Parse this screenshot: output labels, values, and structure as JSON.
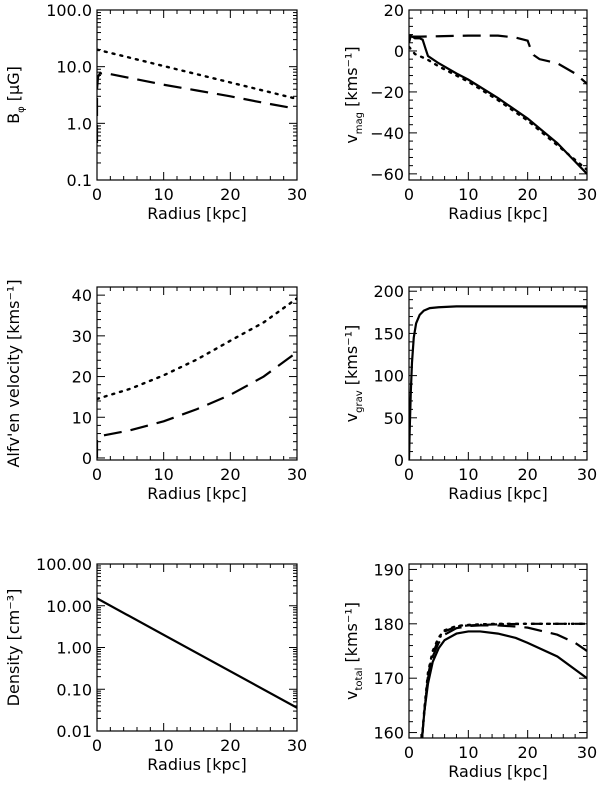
{
  "chart_data": [
    {
      "id": "bphi",
      "type": "line",
      "yscale": "log",
      "xlabel": "Radius [kpc]",
      "ylabel": {
        "main": "B",
        "sub": "φ",
        "tail": " [μG]"
      },
      "xlim": [
        0,
        30
      ],
      "ylim": [
        0.1,
        100
      ],
      "xticks": [
        0,
        10,
        20,
        30
      ],
      "xticklabels": [
        "0",
        "10",
        "20",
        "30"
      ],
      "yticks": [
        0.1,
        1,
        10,
        100
      ],
      "yticklabels": [
        "0.1",
        "1.0",
        "10.0",
        "100.0"
      ],
      "series": [
        {
          "name": "dotted",
          "style": "dot",
          "x": [
            0,
            30
          ],
          "y": [
            20,
            2.7
          ]
        },
        {
          "name": "dashed",
          "style": "dash",
          "x": [
            0,
            0,
            0.15,
            0.4,
            1,
            5,
            10,
            15,
            20,
            25,
            30
          ],
          "y": [
            0.45,
            4,
            6.5,
            7.5,
            7.8,
            6.3,
            4.8,
            3.8,
            3,
            2.3,
            1.8
          ]
        }
      ]
    },
    {
      "id": "vmag",
      "type": "line",
      "yscale": "linear",
      "xlabel": "Radius [kpc]",
      "ylabel": {
        "main": "v",
        "sub": "mag",
        "tail": " [kms⁻¹]"
      },
      "xlim": [
        0,
        30
      ],
      "ylim": [
        -63,
        20
      ],
      "xticks": [
        0,
        10,
        20,
        30
      ],
      "xticklabels": [
        "0",
        "10",
        "20",
        "30"
      ],
      "yticks": [
        -60,
        -40,
        -20,
        0,
        20
      ],
      "yticklabels": [
        "−60",
        "−40",
        "−20",
        "0",
        "20"
      ],
      "series": [
        {
          "name": "solid",
          "style": "solid",
          "x": [
            0,
            0.3,
            1,
            1.8,
            2.3,
            2.8,
            3.2,
            5,
            8,
            10,
            15,
            20,
            25,
            30
          ],
          "y": [
            4,
            7.5,
            6.2,
            6.2,
            5.5,
            1,
            -2.5,
            -6,
            -11,
            -14,
            -23,
            -33,
            -45,
            -60
          ]
        },
        {
          "name": "dashed",
          "style": "dash",
          "x": [
            0,
            0.3,
            2,
            5,
            10,
            15,
            18,
            20,
            20.5,
            21,
            22,
            25,
            28,
            30
          ],
          "y": [
            7.5,
            7,
            7,
            7.2,
            7.5,
            7.5,
            6.5,
            5,
            1,
            -2,
            -4,
            -6,
            -11,
            -16
          ]
        },
        {
          "name": "dotted",
          "style": "dot",
          "x": [
            0,
            1,
            3,
            5,
            8,
            10,
            15,
            20,
            25,
            30
          ],
          "y": [
            2,
            -1.5,
            -4,
            -7.5,
            -12,
            -15,
            -24,
            -34,
            -46,
            -58
          ]
        }
      ]
    },
    {
      "id": "alfven",
      "type": "line",
      "yscale": "linear",
      "xlabel": "Radius [kpc]",
      "ylabel": {
        "main": "Alfv'en velocity [kms⁻¹]",
        "sub": "",
        "tail": ""
      },
      "xlim": [
        0,
        30
      ],
      "ylim": [
        -0.5,
        42
      ],
      "xticks": [
        0,
        10,
        20,
        30
      ],
      "xticklabels": [
        "0",
        "10",
        "20",
        "30"
      ],
      "yticks": [
        0,
        10,
        20,
        30,
        40
      ],
      "yticklabels": [
        "0",
        "10",
        "20",
        "30",
        "40"
      ],
      "series": [
        {
          "name": "dotted",
          "style": "dot",
          "x": [
            0,
            5,
            10,
            15,
            20,
            25,
            30
          ],
          "y": [
            14.5,
            17,
            20.3,
            24.2,
            28.8,
            33.3,
            39.2
          ]
        },
        {
          "name": "dashed",
          "style": "dash",
          "x": [
            0,
            0,
            0.3,
            0.8,
            5,
            10,
            15,
            20,
            25,
            30
          ],
          "y": [
            0,
            4.5,
            5.2,
            5.5,
            6.8,
            9,
            12,
            15.5,
            20,
            26
          ]
        }
      ]
    },
    {
      "id": "vgrav",
      "type": "line",
      "yscale": "linear",
      "xlabel": "Radius [kpc]",
      "ylabel": {
        "main": "v",
        "sub": "grav",
        "tail": " [kms⁻¹]"
      },
      "xlim": [
        0,
        30
      ],
      "ylim": [
        0,
        205
      ],
      "xticks": [
        0,
        10,
        20,
        30
      ],
      "xticklabels": [
        "0",
        "10",
        "20",
        "30"
      ],
      "yticks": [
        0,
        50,
        100,
        150,
        200
      ],
      "yticklabels": [
        "0",
        "50",
        "100",
        "150",
        "200"
      ],
      "series": [
        {
          "name": "solid",
          "style": "solid",
          "x": [
            0,
            0.1,
            0.3,
            0.5,
            0.8,
            1.2,
            1.8,
            2.5,
            3.5,
            5,
            8,
            30
          ],
          "y": [
            0,
            30,
            80,
            115,
            145,
            162,
            172,
            177,
            180,
            181,
            182,
            182
          ]
        }
      ]
    },
    {
      "id": "density",
      "type": "line",
      "yscale": "log",
      "xlabel": "Radius [kpc]",
      "ylabel": {
        "main": "Density [cm⁻³]",
        "sub": "",
        "tail": ""
      },
      "xlim": [
        0,
        30
      ],
      "ylim": [
        0.01,
        100
      ],
      "xticks": [
        0,
        10,
        20,
        30
      ],
      "xticklabels": [
        "0",
        "10",
        "20",
        "30"
      ],
      "yticks": [
        0.01,
        0.1,
        1,
        10,
        100
      ],
      "yticklabels": [
        "0.01",
        "0.10",
        "1.00",
        "10.00",
        "100.00"
      ],
      "series": [
        {
          "name": "solid",
          "style": "solid",
          "x": [
            0,
            30
          ],
          "y": [
            15,
            0.036
          ]
        }
      ]
    },
    {
      "id": "vtotal",
      "type": "line",
      "yscale": "linear",
      "xlabel": "Radius [kpc]",
      "ylabel": {
        "main": "v",
        "sub": "total",
        "tail": " [kms⁻¹]"
      },
      "xlim": [
        0,
        30
      ],
      "ylim": [
        159,
        191
      ],
      "xticks": [
        0,
        10,
        20,
        30
      ],
      "xticklabels": [
        "0",
        "10",
        "20",
        "30"
      ],
      "yticks": [
        160,
        170,
        180,
        190
      ],
      "yticklabels": [
        "160",
        "170",
        "180",
        "190"
      ],
      "series": [
        {
          "name": "solid",
          "style": "solid",
          "x": [
            2.2,
            2.6,
            3.2,
            4,
            5,
            6,
            8,
            10,
            12,
            15,
            18,
            20,
            25,
            30
          ],
          "y": [
            159,
            164,
            169,
            173,
            175.5,
            177,
            178.2,
            178.6,
            178.6,
            178.2,
            177.4,
            176.5,
            174,
            170
          ]
        },
        {
          "name": "dashed",
          "style": "dash",
          "x": [
            2.2,
            2.6,
            3.2,
            4,
            5,
            6,
            8,
            10,
            12,
            15,
            18,
            20,
            25,
            28,
            30
          ],
          "y": [
            159,
            164,
            170,
            174,
            176.5,
            178,
            179.2,
            179.6,
            179.7,
            179.7,
            179.5,
            179.3,
            178,
            176.5,
            175
          ]
        },
        {
          "name": "dotted",
          "style": "dot",
          "x": [
            2.2,
            2.6,
            3.2,
            4,
            5,
            6,
            8,
            10,
            12,
            15,
            20,
            25,
            30
          ],
          "y": [
            159,
            164.5,
            171,
            175,
            177.5,
            178.8,
            179.6,
            179.8,
            179.9,
            180,
            180,
            180,
            180
          ]
        },
        {
          "name": "dashdot",
          "style": "dashdot",
          "x": [
            2.2,
            2.6,
            3.2,
            4,
            5,
            6,
            8,
            10,
            12,
            15,
            20,
            25,
            30
          ],
          "y": [
            159,
            164,
            170.5,
            174.5,
            177.2,
            178.6,
            179.5,
            179.7,
            179.8,
            179.9,
            180,
            180,
            180
          ]
        }
      ]
    }
  ]
}
